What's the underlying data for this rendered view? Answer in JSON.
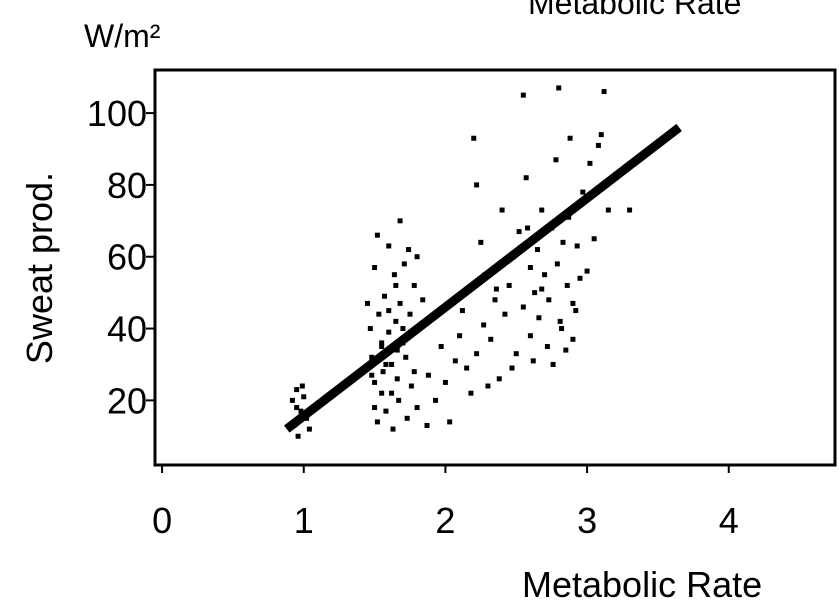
{
  "chart_data": {
    "type": "scatter",
    "title": "Metabolic Rate",
    "xlabel": "Metabolic Rate",
    "ylabel": "Sweat prod.",
    "yunit": "W/m²",
    "xlim": [
      -0.05,
      4.75
    ],
    "ylim": [
      2,
      112
    ],
    "xticks": [
      0,
      1,
      2,
      3,
      4
    ],
    "yticks": [
      20,
      40,
      60,
      80,
      100
    ],
    "grid": false,
    "legend": "none",
    "series": [
      {
        "points": [
          [
            0.92,
            20
          ],
          [
            0.93,
            13
          ],
          [
            0.95,
            23
          ],
          [
            0.96,
            10
          ],
          [
            0.98,
            17
          ],
          [
            1.0,
            21
          ],
          [
            1.02,
            15
          ],
          [
            1.04,
            12
          ],
          [
            0.95,
            18
          ],
          [
            0.99,
            24
          ],
          [
            1.45,
            47
          ],
          [
            1.47,
            40
          ],
          [
            1.48,
            32
          ],
          [
            1.5,
            25
          ],
          [
            1.5,
            18
          ],
          [
            1.52,
            14
          ],
          [
            1.53,
            44
          ],
          [
            1.55,
            36
          ],
          [
            1.55,
            22
          ],
          [
            1.56,
            28
          ],
          [
            1.57,
            49
          ],
          [
            1.58,
            17
          ],
          [
            1.6,
            63
          ],
          [
            1.6,
            39
          ],
          [
            1.62,
            30
          ],
          [
            1.63,
            12
          ],
          [
            1.64,
            55
          ],
          [
            1.65,
            42
          ],
          [
            1.66,
            26
          ],
          [
            1.67,
            20
          ],
          [
            1.68,
            70
          ],
          [
            1.68,
            47
          ],
          [
            1.7,
            36
          ],
          [
            1.71,
            58
          ],
          [
            1.72,
            32
          ],
          [
            1.73,
            15
          ],
          [
            1.74,
            62
          ],
          [
            1.75,
            44
          ],
          [
            1.76,
            24
          ],
          [
            1.78,
            52
          ],
          [
            1.5,
            57
          ],
          [
            1.52,
            66
          ],
          [
            1.58,
            30
          ],
          [
            1.62,
            22
          ],
          [
            1.66,
            34
          ],
          [
            1.7,
            40
          ],
          [
            1.8,
            18
          ],
          [
            1.8,
            60
          ],
          [
            1.84,
            48
          ],
          [
            1.87,
            13
          ],
          [
            1.6,
            45
          ],
          [
            1.55,
            35
          ],
          [
            1.65,
            52
          ],
          [
            1.48,
            27
          ],
          [
            1.78,
            28
          ],
          [
            1.88,
            27
          ],
          [
            1.93,
            20
          ],
          [
            1.97,
            35
          ],
          [
            2.0,
            25
          ],
          [
            2.03,
            14
          ],
          [
            2.07,
            31
          ],
          [
            2.1,
            38
          ],
          [
            2.12,
            45
          ],
          [
            2.15,
            29
          ],
          [
            2.18,
            22
          ],
          [
            2.2,
            93
          ],
          [
            2.22,
            80
          ],
          [
            2.22,
            33
          ],
          [
            2.25,
            64
          ],
          [
            2.27,
            41
          ],
          [
            2.28,
            55
          ],
          [
            2.3,
            24
          ],
          [
            2.32,
            37
          ],
          [
            2.35,
            48
          ],
          [
            2.38,
            26
          ],
          [
            2.4,
            73
          ],
          [
            2.42,
            44
          ],
          [
            2.45,
            52
          ],
          [
            2.47,
            29
          ],
          [
            2.48,
            60
          ],
          [
            2.5,
            33
          ],
          [
            2.52,
            67
          ],
          [
            2.55,
            105
          ],
          [
            2.55,
            46
          ],
          [
            2.57,
            82
          ],
          [
            2.6,
            57
          ],
          [
            2.6,
            38
          ],
          [
            2.62,
            31
          ],
          [
            2.63,
            50
          ],
          [
            2.65,
            62
          ],
          [
            2.66,
            43
          ],
          [
            2.68,
            73
          ],
          [
            2.7,
            55
          ],
          [
            2.72,
            35
          ],
          [
            2.73,
            48
          ],
          [
            2.75,
            68
          ],
          [
            2.76,
            30
          ],
          [
            2.78,
            87
          ],
          [
            2.79,
            58
          ],
          [
            2.8,
            107
          ],
          [
            2.81,
            42
          ],
          [
            2.83,
            64
          ],
          [
            2.85,
            34
          ],
          [
            2.86,
            52
          ],
          [
            2.87,
            71
          ],
          [
            2.88,
            93
          ],
          [
            2.9,
            47
          ],
          [
            2.9,
            37
          ],
          [
            2.93,
            63
          ],
          [
            2.95,
            54
          ],
          [
            2.97,
            78
          ],
          [
            3.0,
            56
          ],
          [
            3.02,
            86
          ],
          [
            3.05,
            65
          ],
          [
            3.08,
            91
          ],
          [
            3.1,
            94
          ],
          [
            3.12,
            106
          ],
          [
            3.15,
            73
          ],
          [
            3.3,
            73
          ],
          [
            2.58,
            68
          ],
          [
            2.44,
            59
          ],
          [
            2.36,
            51
          ],
          [
            2.68,
            51
          ],
          [
            2.82,
            40
          ],
          [
            2.92,
            45
          ]
        ]
      }
    ],
    "regression_line": {
      "x": [
        0.88,
        3.65
      ],
      "y": [
        12,
        96
      ]
    }
  }
}
